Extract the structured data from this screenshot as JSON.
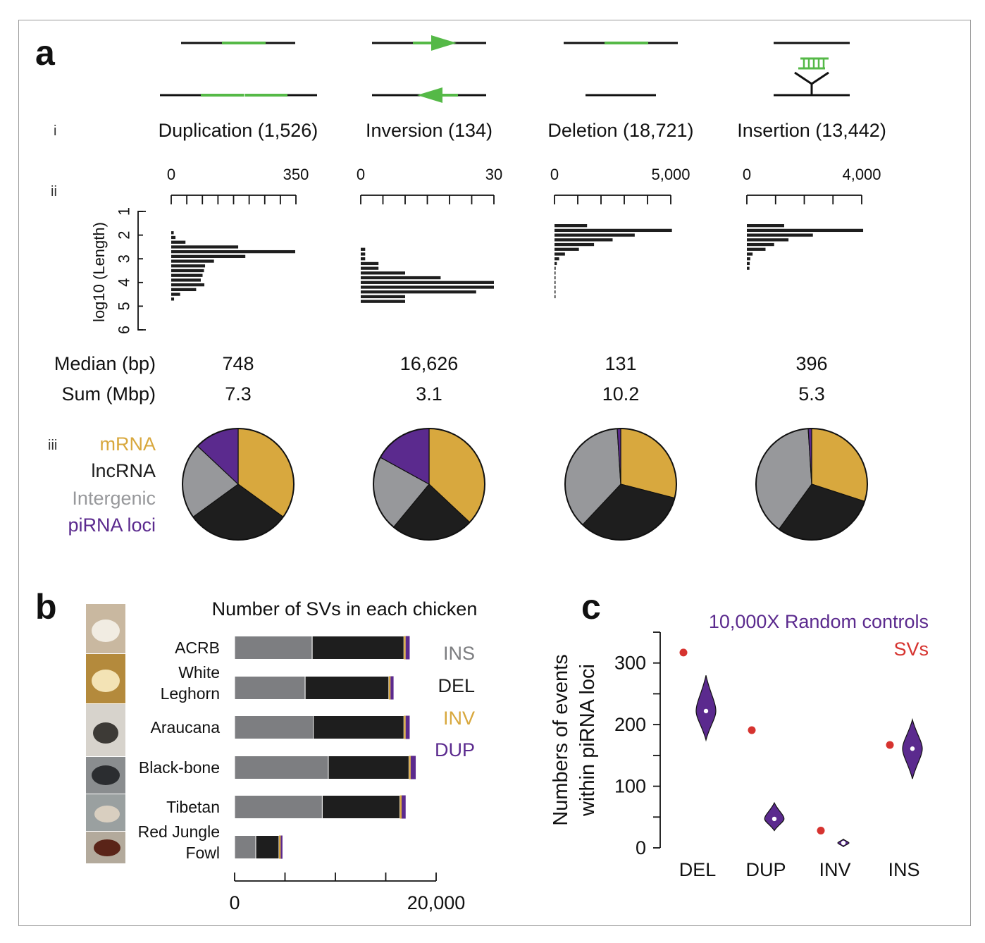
{
  "panels": {
    "a": {
      "letter": "a",
      "row_labels": {
        "i": "i",
        "ii": "ii",
        "iii": "iii"
      },
      "colors": {
        "sv_green": "#55b947",
        "line": "#111111"
      },
      "types": [
        {
          "key": "duplication",
          "title": "Duplication (1,526)",
          "axis_tick_labels": [
            "0",
            "350"
          ],
          "axis_max": 350,
          "axis_minor_ticks": 8,
          "hist_bins": [
            [
              1.7,
              0
            ],
            [
              1.9,
              7
            ],
            [
              2.1,
              12
            ],
            [
              2.3,
              40
            ],
            [
              2.5,
              188
            ],
            [
              2.7,
              348
            ],
            [
              2.9,
              208
            ],
            [
              3.1,
              120
            ],
            [
              3.3,
              95
            ],
            [
              3.5,
              92
            ],
            [
              3.7,
              88
            ],
            [
              3.9,
              83
            ],
            [
              4.1,
              93
            ],
            [
              4.3,
              70
            ],
            [
              4.5,
              25
            ],
            [
              4.7,
              8
            ]
          ],
          "median_bp": "748",
          "sum_mbp": "7.3",
          "pie": [
            {
              "name": "mRNA",
              "value": 0.35
            },
            {
              "name": "lncRNA",
              "value": 0.3
            },
            {
              "name": "Intergenic",
              "value": 0.22
            },
            {
              "name": "piRNA loci",
              "value": 0.13
            }
          ]
        },
        {
          "key": "inversion",
          "title": "Inversion (134)",
          "axis_tick_labels": [
            "0",
            "30"
          ],
          "axis_max": 30,
          "axis_minor_ticks": 6,
          "hist_bins": [
            [
              2.6,
              1
            ],
            [
              2.8,
              1
            ],
            [
              3.0,
              1
            ],
            [
              3.2,
              4
            ],
            [
              3.4,
              4
            ],
            [
              3.6,
              10
            ],
            [
              3.8,
              18
            ],
            [
              4.0,
              30
            ],
            [
              4.2,
              30
            ],
            [
              4.4,
              26
            ],
            [
              4.6,
              10
            ],
            [
              4.8,
              10
            ]
          ],
          "median_bp": "16,626",
          "sum_mbp": "3.1",
          "pie": [
            {
              "name": "mRNA",
              "value": 0.37
            },
            {
              "name": "lncRNA",
              "value": 0.24
            },
            {
              "name": "Intergenic",
              "value": 0.22
            },
            {
              "name": "piRNA loci",
              "value": 0.17
            }
          ]
        },
        {
          "key": "deletion",
          "title": "Deletion (18,721)",
          "axis_tick_labels": [
            "0",
            "5,000"
          ],
          "axis_max": 5000,
          "axis_minor_ticks": 5,
          "hist_bins": [
            [
              1.6,
              1400
            ],
            [
              1.8,
              5050
            ],
            [
              2.0,
              3450
            ],
            [
              2.2,
              2500
            ],
            [
              2.4,
              1700
            ],
            [
              2.6,
              1050
            ],
            [
              2.8,
              450
            ],
            [
              3.0,
              200
            ],
            [
              3.2,
              100
            ],
            [
              3.4,
              50
            ],
            [
              3.6,
              30
            ],
            [
              3.8,
              20
            ],
            [
              4.0,
              10
            ],
            [
              4.2,
              5
            ],
            [
              4.4,
              3
            ],
            [
              4.6,
              2
            ]
          ],
          "median_bp": "131",
          "sum_mbp": "10.2",
          "pie": [
            {
              "name": "mRNA",
              "value": 0.29
            },
            {
              "name": "lncRNA",
              "value": 0.33
            },
            {
              "name": "Intergenic",
              "value": 0.37
            },
            {
              "name": "piRNA loci",
              "value": 0.01
            }
          ]
        },
        {
          "key": "insertion",
          "title": "Insertion (13,442)",
          "axis_tick_labels": [
            "0",
            "4,000"
          ],
          "axis_max": 4000,
          "axis_minor_ticks": 4,
          "hist_bins": [
            [
              1.6,
              1300
            ],
            [
              1.8,
              4050
            ],
            [
              2.0,
              2300
            ],
            [
              2.2,
              1450
            ],
            [
              2.4,
              950
            ],
            [
              2.6,
              650
            ],
            [
              2.8,
              200
            ],
            [
              3.0,
              120
            ],
            [
              3.2,
              100
            ],
            [
              3.4,
              90
            ]
          ],
          "median_bp": "396",
          "sum_mbp": "5.3",
          "pie": [
            {
              "name": "mRNA",
              "value": 0.3
            },
            {
              "name": "lncRNA",
              "value": 0.3
            },
            {
              "name": "Intergenic",
              "value": 0.39
            },
            {
              "name": "piRNA loci",
              "value": 0.01
            }
          ]
        }
      ],
      "hist_y": {
        "label": "log10 (Length)",
        "ticks": [
          "1",
          "2",
          "3",
          "4",
          "5",
          "6"
        ],
        "range": [
          1,
          6
        ]
      },
      "stat_labels": {
        "median": "Median (bp)",
        "sum": "Sum (Mbp)"
      },
      "pie_legend": [
        {
          "name": "mRNA",
          "color": "#d8a83e"
        },
        {
          "name": "lncRNA",
          "color": "#1e1e1e"
        },
        {
          "name": "Intergenic",
          "color": "#97989b"
        },
        {
          "name": "piRNA loci",
          "color": "#5b2a8e"
        }
      ]
    },
    "b": {
      "letter": "b",
      "title": "Number of SVs in each chicken",
      "x_tick_labels": [
        "0",
        "20,000"
      ],
      "x_max": 20000,
      "series": [
        {
          "name": "INS",
          "color": "#7d7e81"
        },
        {
          "name": "DEL",
          "color": "#1e1e1e"
        },
        {
          "name": "INV",
          "color": "#d8a83e"
        },
        {
          "name": "DUP",
          "color": "#5b2a8e"
        }
      ],
      "chickens": [
        {
          "label": [
            "ACRB"
          ],
          "INS": 7700,
          "DEL": 9100,
          "INV": 130,
          "DUP": 400
        },
        {
          "label": [
            "White",
            "Leghorn"
          ],
          "INS": 7000,
          "DEL": 8300,
          "INV": 120,
          "DUP": 300
        },
        {
          "label": [
            "Araucana"
          ],
          "INS": 7800,
          "DEL": 9000,
          "INV": 130,
          "DUP": 400
        },
        {
          "label": [
            "Black-bone"
          ],
          "INS": 9300,
          "DEL": 8000,
          "INV": 130,
          "DUP": 500
        },
        {
          "label": [
            "Tibetan"
          ],
          "INS": 8700,
          "DEL": 7700,
          "INV": 120,
          "DUP": 400
        },
        {
          "label": [
            "Red Jungle",
            "Fowl"
          ],
          "INS": 2100,
          "DEL": 2300,
          "INV": 80,
          "DUP": 60
        }
      ]
    },
    "c": {
      "letter": "c",
      "y_label_lines": [
        "Numbers of events",
        "within piRNA loci"
      ],
      "y_ticks": [
        0,
        100,
        200,
        300
      ],
      "y_range": [
        0,
        350
      ],
      "legend": [
        {
          "name": "10,000X Random controls",
          "color": "#5b2a8e"
        },
        {
          "name": "SVs",
          "color": "#d6332f"
        }
      ],
      "categories": [
        "DEL",
        "DUP",
        "INV",
        "INS"
      ],
      "sv_values": [
        317,
        191,
        28,
        167
      ],
      "control_median": [
        222,
        47,
        8,
        161
      ],
      "control_range": [
        [
          175,
          280
        ],
        [
          28,
          73
        ],
        [
          2,
          14
        ],
        [
          112,
          208
        ]
      ],
      "violin_color": "#5b2a8e"
    }
  }
}
